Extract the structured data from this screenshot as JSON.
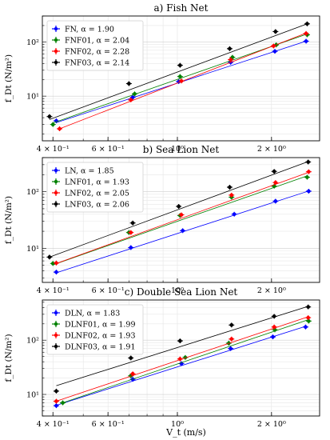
{
  "figure": {
    "xlabel": "V_t (m/s)",
    "ylabel": "f_Dt (N/m²)"
  },
  "colors": {
    "blue": "#0000ff",
    "green": "#008000",
    "red": "#ff0000",
    "black": "#000000"
  },
  "chart_data": [
    {
      "type": "scatter",
      "title": "a) Fish Net",
      "xscale": "log",
      "yscale": "log",
      "xlim": [
        0.37,
        2.85
      ],
      "ylim": [
        1.5,
        300
      ],
      "xticks": [
        0.4,
        0.6,
        1.0,
        2.0
      ],
      "xtick_labels": [
        "4 × 10⁻¹",
        "6 × 10⁻¹",
        "10⁰",
        "2 × 10⁰"
      ],
      "yticks": [
        10,
        100
      ],
      "ytick_labels": [
        "10¹",
        "10²"
      ],
      "grid": true,
      "legend_position": "top-left",
      "series": [
        {
          "name": "FN, α = 1.90",
          "color": "#0000ff",
          "x": [
            0.41,
            0.72,
            1.01,
            1.48,
            2.05,
            2.58
          ],
          "y": [
            3.5,
            9.5,
            18.5,
            42,
            67,
            103
          ],
          "fit": [
            [
              0.41,
              3.25
            ],
            [
              2.58,
              103
            ]
          ]
        },
        {
          "name": "FNF01, α = 2.04",
          "color": "#008000",
          "x": [
            0.4,
            0.73,
            1.02,
            1.5,
            2.07,
            2.6
          ],
          "y": [
            3.0,
            11,
            23,
            52,
            88,
            135
          ],
          "fit": [
            [
              0.4,
              3.2
            ],
            [
              2.6,
              140
            ]
          ]
        },
        {
          "name": "FNF02, α = 2.28",
          "color": "#ff0000",
          "x": [
            0.42,
            0.71,
            1.03,
            1.48,
            2.03,
            2.58
          ],
          "y": [
            2.5,
            8.5,
            19,
            47,
            84,
            143
          ],
          "fit": [
            [
              0.42,
              2.5
            ],
            [
              2.58,
              145
            ]
          ]
        },
        {
          "name": "FNF03, α = 2.14",
          "color": "#000000",
          "x": [
            0.39,
            0.7,
            1.02,
            1.47,
            2.06,
            2.6
          ],
          "y": [
            4.2,
            17,
            37,
            75,
            155,
            215
          ],
          "fit": [
            [
              0.39,
              3.7
            ],
            [
              2.6,
              215
            ]
          ]
        }
      ]
    },
    {
      "type": "scatter",
      "title": "b) Sea Lion Net",
      "xscale": "log",
      "yscale": "log",
      "xlim": [
        0.37,
        2.85
      ],
      "ylim": [
        2.5,
        400
      ],
      "xticks": [
        0.4,
        0.6,
        1.0,
        2.0
      ],
      "xtick_labels": [
        "4 × 10⁻¹",
        "6 × 10⁻¹",
        "10⁰",
        "2 × 10⁰"
      ],
      "yticks": [
        10,
        100
      ],
      "ytick_labels": [
        "10¹",
        "10²"
      ],
      "grid": true,
      "legend_position": "top-left",
      "series": [
        {
          "name": "LN, α = 1.85",
          "color": "#0000ff",
          "x": [
            0.41,
            0.71,
            1.04,
            1.52,
            2.06,
            2.63
          ],
          "y": [
            3.8,
            10.3,
            20.5,
            40,
            68,
            102
          ],
          "fit": [
            [
              0.41,
              3.7
            ],
            [
              2.63,
              103
            ]
          ]
        },
        {
          "name": "LNF01, α = 1.93",
          "color": "#008000",
          "x": [
            0.4,
            0.7,
            1.02,
            1.49,
            2.04,
            2.6
          ],
          "y": [
            5.4,
            19,
            38,
            80,
            125,
            180
          ],
          "fit": [
            [
              0.4,
              5.1
            ],
            [
              2.6,
              190
            ]
          ]
        },
        {
          "name": "LNF02, α = 2.05",
          "color": "#ff0000",
          "x": [
            0.41,
            0.71,
            1.03,
            1.49,
            2.06,
            2.63
          ],
          "y": [
            5.5,
            19,
            39,
            87,
            145,
            225
          ],
          "fit": [
            [
              0.41,
              5.4
            ],
            [
              2.63,
              220
            ]
          ]
        },
        {
          "name": "LNF03, α = 2.06",
          "color": "#000000",
          "x": [
            0.39,
            0.72,
            1.01,
            1.47,
            2.04,
            2.62
          ],
          "y": [
            7.0,
            28,
            55,
            120,
            228,
            335
          ],
          "fit": [
            [
              0.39,
              7.0
            ],
            [
              2.62,
              340
            ]
          ]
        }
      ]
    },
    {
      "type": "scatter",
      "title": "c) Double Sea Lion Net",
      "xscale": "log",
      "yscale": "log",
      "xlim": [
        0.37,
        2.85
      ],
      "ylim": [
        4,
        550
      ],
      "xticks": [
        0.4,
        0.6,
        1.0,
        2.0
      ],
      "xtick_labels": [
        "4 × 10⁻¹",
        "6 × 10⁻¹",
        "10⁰",
        "2 × 10⁰"
      ],
      "yticks": [
        10,
        100
      ],
      "ytick_labels": [
        "10¹",
        "10²"
      ],
      "grid": true,
      "legend_position": "top-left",
      "series": [
        {
          "name": "DLN, α = 1.83",
          "color": "#0000ff",
          "x": [
            0.41,
            0.72,
            1.03,
            1.48,
            2.02,
            2.57
          ],
          "y": [
            6.2,
            19,
            37,
            70,
            115,
            175
          ],
          "fit": [
            [
              0.41,
              6.3
            ],
            [
              2.57,
              180
            ]
          ]
        },
        {
          "name": "DLNF01, α = 1.99",
          "color": "#008000",
          "x": [
            0.43,
            0.71,
            1.06,
            1.46,
            2.05,
            2.63
          ],
          "y": [
            7.0,
            22,
            48,
            88,
            155,
            225
          ],
          "fit": [
            [
              0.43,
              7.0
            ],
            [
              2.63,
              240
            ]
          ]
        },
        {
          "name": "DLNF02, α = 1.93",
          "color": "#ff0000",
          "x": [
            0.41,
            0.72,
            1.02,
            1.49,
            2.04,
            2.62
          ],
          "y": [
            7.5,
            24,
            45,
            105,
            175,
            260
          ],
          "fit": [
            [
              0.41,
              7.5
            ],
            [
              2.62,
              270
            ]
          ]
        },
        {
          "name": "DLNF03, α = 1.91",
          "color": "#000000",
          "x": [
            0.41,
            0.71,
            1.02,
            1.49,
            2.04,
            2.62
          ],
          "y": [
            11.5,
            47,
            97,
            190,
            275,
            410
          ],
          "fit": [
            [
              0.41,
              14.5
            ],
            [
              2.62,
              420
            ]
          ]
        }
      ]
    }
  ]
}
